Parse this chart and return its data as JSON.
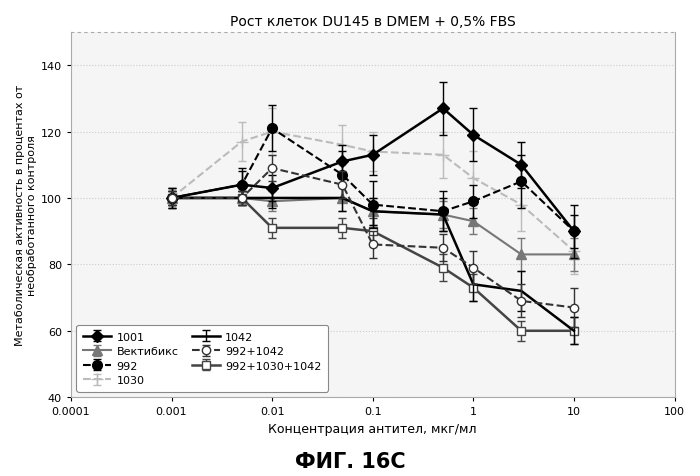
{
  "title": "Рост клеток DU145 в DMEM + 0,5% FBS",
  "xlabel": "Концентрация антител, мкг/мл",
  "ylabel": "Метаболическая активность в процентах от\nнеобработанного контроля",
  "fig_label": "ФИГ. 16С",
  "xlim": [
    0.0001,
    100
  ],
  "ylim": [
    40,
    150
  ],
  "yticks": [
    40,
    60,
    80,
    100,
    120,
    140
  ],
  "series": {
    "1001": {
      "x": [
        0.001,
        0.005,
        0.01,
        0.05,
        0.1,
        0.5,
        1,
        3,
        10
      ],
      "y": [
        100,
        104,
        103,
        111,
        113,
        127,
        119,
        110,
        90
      ],
      "yerr": [
        3,
        4,
        4,
        5,
        6,
        8,
        8,
        7,
        5
      ],
      "color": "#000000",
      "linestyle": "-",
      "marker": "D",
      "markerfacecolor": "#000000",
      "markeredgecolor": "#000000",
      "linewidth": 1.8,
      "markersize": 6,
      "label": "1001",
      "zorder": 7
    },
    "992": {
      "x": [
        0.001,
        0.005,
        0.01,
        0.05,
        0.1,
        0.5,
        1,
        3,
        10
      ],
      "y": [
        100,
        104,
        121,
        107,
        98,
        96,
        99,
        105,
        90
      ],
      "yerr": [
        3,
        5,
        7,
        7,
        7,
        6,
        5,
        8,
        8
      ],
      "color": "#000000",
      "linestyle": "--",
      "marker": "o",
      "markerfacecolor": "#000000",
      "markeredgecolor": "#000000",
      "linewidth": 1.5,
      "markersize": 7,
      "label": "992",
      "zorder": 6
    },
    "1042": {
      "x": [
        0.001,
        0.005,
        0.01,
        0.05,
        0.1,
        0.5,
        1,
        3,
        10
      ],
      "y": [
        100,
        100,
        100,
        100,
        96,
        95,
        74,
        72,
        60
      ],
      "yerr": [
        2,
        2,
        3,
        4,
        4,
        5,
        5,
        6,
        4
      ],
      "color": "#000000",
      "linestyle": "-",
      "marker": "None",
      "markerfacecolor": "#000000",
      "markeredgecolor": "#000000",
      "linewidth": 1.8,
      "markersize": 5,
      "label": "1042",
      "zorder": 5
    },
    "992+1030+1042": {
      "x": [
        0.001,
        0.005,
        0.01,
        0.05,
        0.1,
        0.5,
        1,
        3,
        10
      ],
      "y": [
        100,
        100,
        91,
        91,
        90,
        79,
        73,
        60,
        60
      ],
      "yerr": [
        2,
        2,
        3,
        3,
        4,
        4,
        4,
        3,
        4
      ],
      "color": "#444444",
      "linestyle": "-",
      "marker": "s",
      "markerfacecolor": "#ffffff",
      "markeredgecolor": "#444444",
      "linewidth": 1.8,
      "markersize": 6,
      "label": "992+1030+1042",
      "zorder": 4
    },
    "Вектибикс": {
      "x": [
        0.001,
        0.005,
        0.01,
        0.05,
        0.1,
        0.5,
        1,
        3,
        10
      ],
      "y": [
        100,
        100,
        99,
        100,
        96,
        95,
        93,
        83,
        83
      ],
      "yerr": [
        2,
        2,
        3,
        4,
        4,
        4,
        4,
        5,
        5
      ],
      "color": "#777777",
      "linestyle": "-",
      "marker": "^",
      "markerfacecolor": "#777777",
      "markeredgecolor": "#777777",
      "linewidth": 1.5,
      "markersize": 7,
      "label": "Вектибикс",
      "zorder": 3
    },
    "1030": {
      "x": [
        0.001,
        0.005,
        0.01,
        0.05,
        0.1,
        0.5,
        1,
        3,
        10
      ],
      "y": [
        100,
        117,
        120,
        116,
        114,
        113,
        106,
        98,
        84
      ],
      "yerr": [
        3,
        6,
        7,
        6,
        6,
        7,
        8,
        8,
        7
      ],
      "color": "#bbbbbb",
      "linestyle": "--",
      "marker": "+",
      "markerfacecolor": "#bbbbbb",
      "markeredgecolor": "#bbbbbb",
      "linewidth": 1.5,
      "markersize": 9,
      "label": "1030",
      "zorder": 2
    },
    "992+1042": {
      "x": [
        0.001,
        0.005,
        0.01,
        0.05,
        0.1,
        0.5,
        1,
        3,
        10
      ],
      "y": [
        100,
        100,
        109,
        104,
        86,
        85,
        79,
        69,
        67
      ],
      "yerr": [
        2,
        2,
        4,
        4,
        4,
        4,
        5,
        5,
        6
      ],
      "color": "#333333",
      "linestyle": "--",
      "marker": "o",
      "markerfacecolor": "#ffffff",
      "markeredgecolor": "#333333",
      "linewidth": 1.5,
      "markersize": 6,
      "label": "992+1042",
      "zorder": 8
    }
  },
  "legend_order": [
    "1001",
    "Вектибикс",
    "992",
    "1030",
    "1042",
    "992+1042",
    "992+1030+1042"
  ],
  "background_color": "#f5f5f5"
}
